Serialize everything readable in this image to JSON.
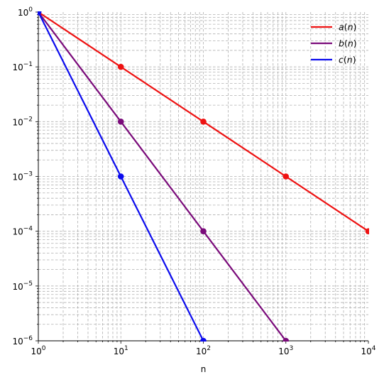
{
  "chart_data": {
    "type": "line",
    "xscale": "log",
    "yscale": "log",
    "xlim": [
      1,
      10000
    ],
    "ylim": [
      1e-06,
      1
    ],
    "xlabel": "n",
    "ylabel": "",
    "grid": "both (major and minor), dashed",
    "legend_position": "top-right",
    "x_ticks": [
      {
        "value": 1,
        "base": "10",
        "exp": "0"
      },
      {
        "value": 10,
        "base": "10",
        "exp": "1"
      },
      {
        "value": 100,
        "base": "10",
        "exp": "2"
      },
      {
        "value": 1000,
        "base": "10",
        "exp": "3"
      },
      {
        "value": 10000,
        "base": "10",
        "exp": "4"
      }
    ],
    "y_ticks": [
      {
        "value": 1,
        "base": "10",
        "exp": "0"
      },
      {
        "value": 0.1,
        "base": "10",
        "exp": "−1"
      },
      {
        "value": 0.01,
        "base": "10",
        "exp": "−2"
      },
      {
        "value": 0.001,
        "base": "10",
        "exp": "−3"
      },
      {
        "value": 0.0001,
        "base": "10",
        "exp": "−4"
      },
      {
        "value": 1e-05,
        "base": "10",
        "exp": "−5"
      },
      {
        "value": 1e-06,
        "base": "10",
        "exp": "−6"
      }
    ],
    "series": [
      {
        "name": "a(n)",
        "legend_func": "a",
        "legend_var": "n",
        "color": "#ee1111",
        "x": [
          1,
          10,
          100,
          1000,
          10000
        ],
        "y": [
          1,
          0.1,
          0.01,
          0.001,
          0.0001
        ]
      },
      {
        "name": "b(n)",
        "legend_func": "b",
        "legend_var": "n",
        "color": "#7a0a7a",
        "x": [
          1,
          10,
          100,
          1000
        ],
        "y": [
          1,
          0.01,
          0.0001,
          1e-06
        ]
      },
      {
        "name": "c(n)",
        "legend_func": "c",
        "legend_var": "n",
        "color": "#0b0bee",
        "x": [
          1,
          10,
          100
        ],
        "y": [
          1,
          0.001,
          1e-06
        ]
      }
    ]
  }
}
